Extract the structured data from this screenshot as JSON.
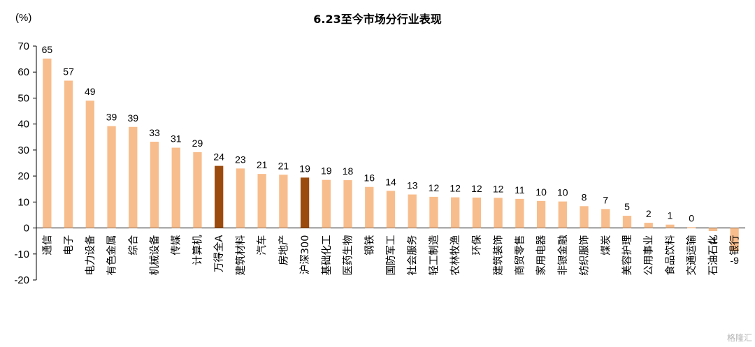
{
  "chart_data": {
    "type": "bar",
    "title": "6.23至今市场分行业表现",
    "ylabel": "(%)",
    "xlabel": "",
    "ylim": [
      -20,
      70
    ],
    "yticks": [
      -20,
      -10,
      0,
      10,
      20,
      30,
      40,
      50,
      60,
      70
    ],
    "grid": false,
    "legend": "none",
    "colors": {
      "default": "#f8bd8c",
      "highlight": "#9c4b0e"
    },
    "highlighted_categories": [
      "万得全A",
      "沪深300"
    ],
    "categories": [
      "通信",
      "电子",
      "电力设备",
      "有色金属",
      "综合",
      "机械设备",
      "传媒",
      "计算机",
      "万得全A",
      "建筑材料",
      "汽车",
      "房地产",
      "沪深300",
      "基础化工",
      "医药生物",
      "钢铁",
      "国防军工",
      "社会服务",
      "轻工制造",
      "农林牧渔",
      "环保",
      "建筑装饰",
      "商贸零售",
      "家用电器",
      "非银金融",
      "纺织服饰",
      "煤炭",
      "美容护理",
      "公用事业",
      "食品饮料",
      "交通运输",
      "石油石化",
      "银行"
    ],
    "values": [
      65.2,
      56.7,
      49.0,
      39.2,
      38.9,
      33.2,
      30.9,
      29.2,
      23.9,
      22.9,
      20.8,
      20.5,
      19.4,
      18.5,
      18.4,
      15.8,
      14.3,
      12.9,
      12.0,
      11.8,
      11.7,
      11.6,
      11.2,
      10.4,
      10.2,
      8.4,
      7.3,
      4.7,
      2.0,
      1.3,
      0.3,
      -1.2,
      -9.0
    ],
    "data_labels": [
      "65",
      "57",
      "49",
      "39",
      "39",
      "33",
      "31",
      "29",
      "24",
      "23",
      "21",
      "21",
      "19",
      "19",
      "18",
      "16",
      "14",
      "13",
      "12",
      "12",
      "12",
      "12",
      "11",
      "10",
      "10",
      "8",
      "7",
      "5",
      "2",
      "1",
      "0",
      "-1",
      "-9"
    ]
  },
  "watermark": "格隆汇"
}
